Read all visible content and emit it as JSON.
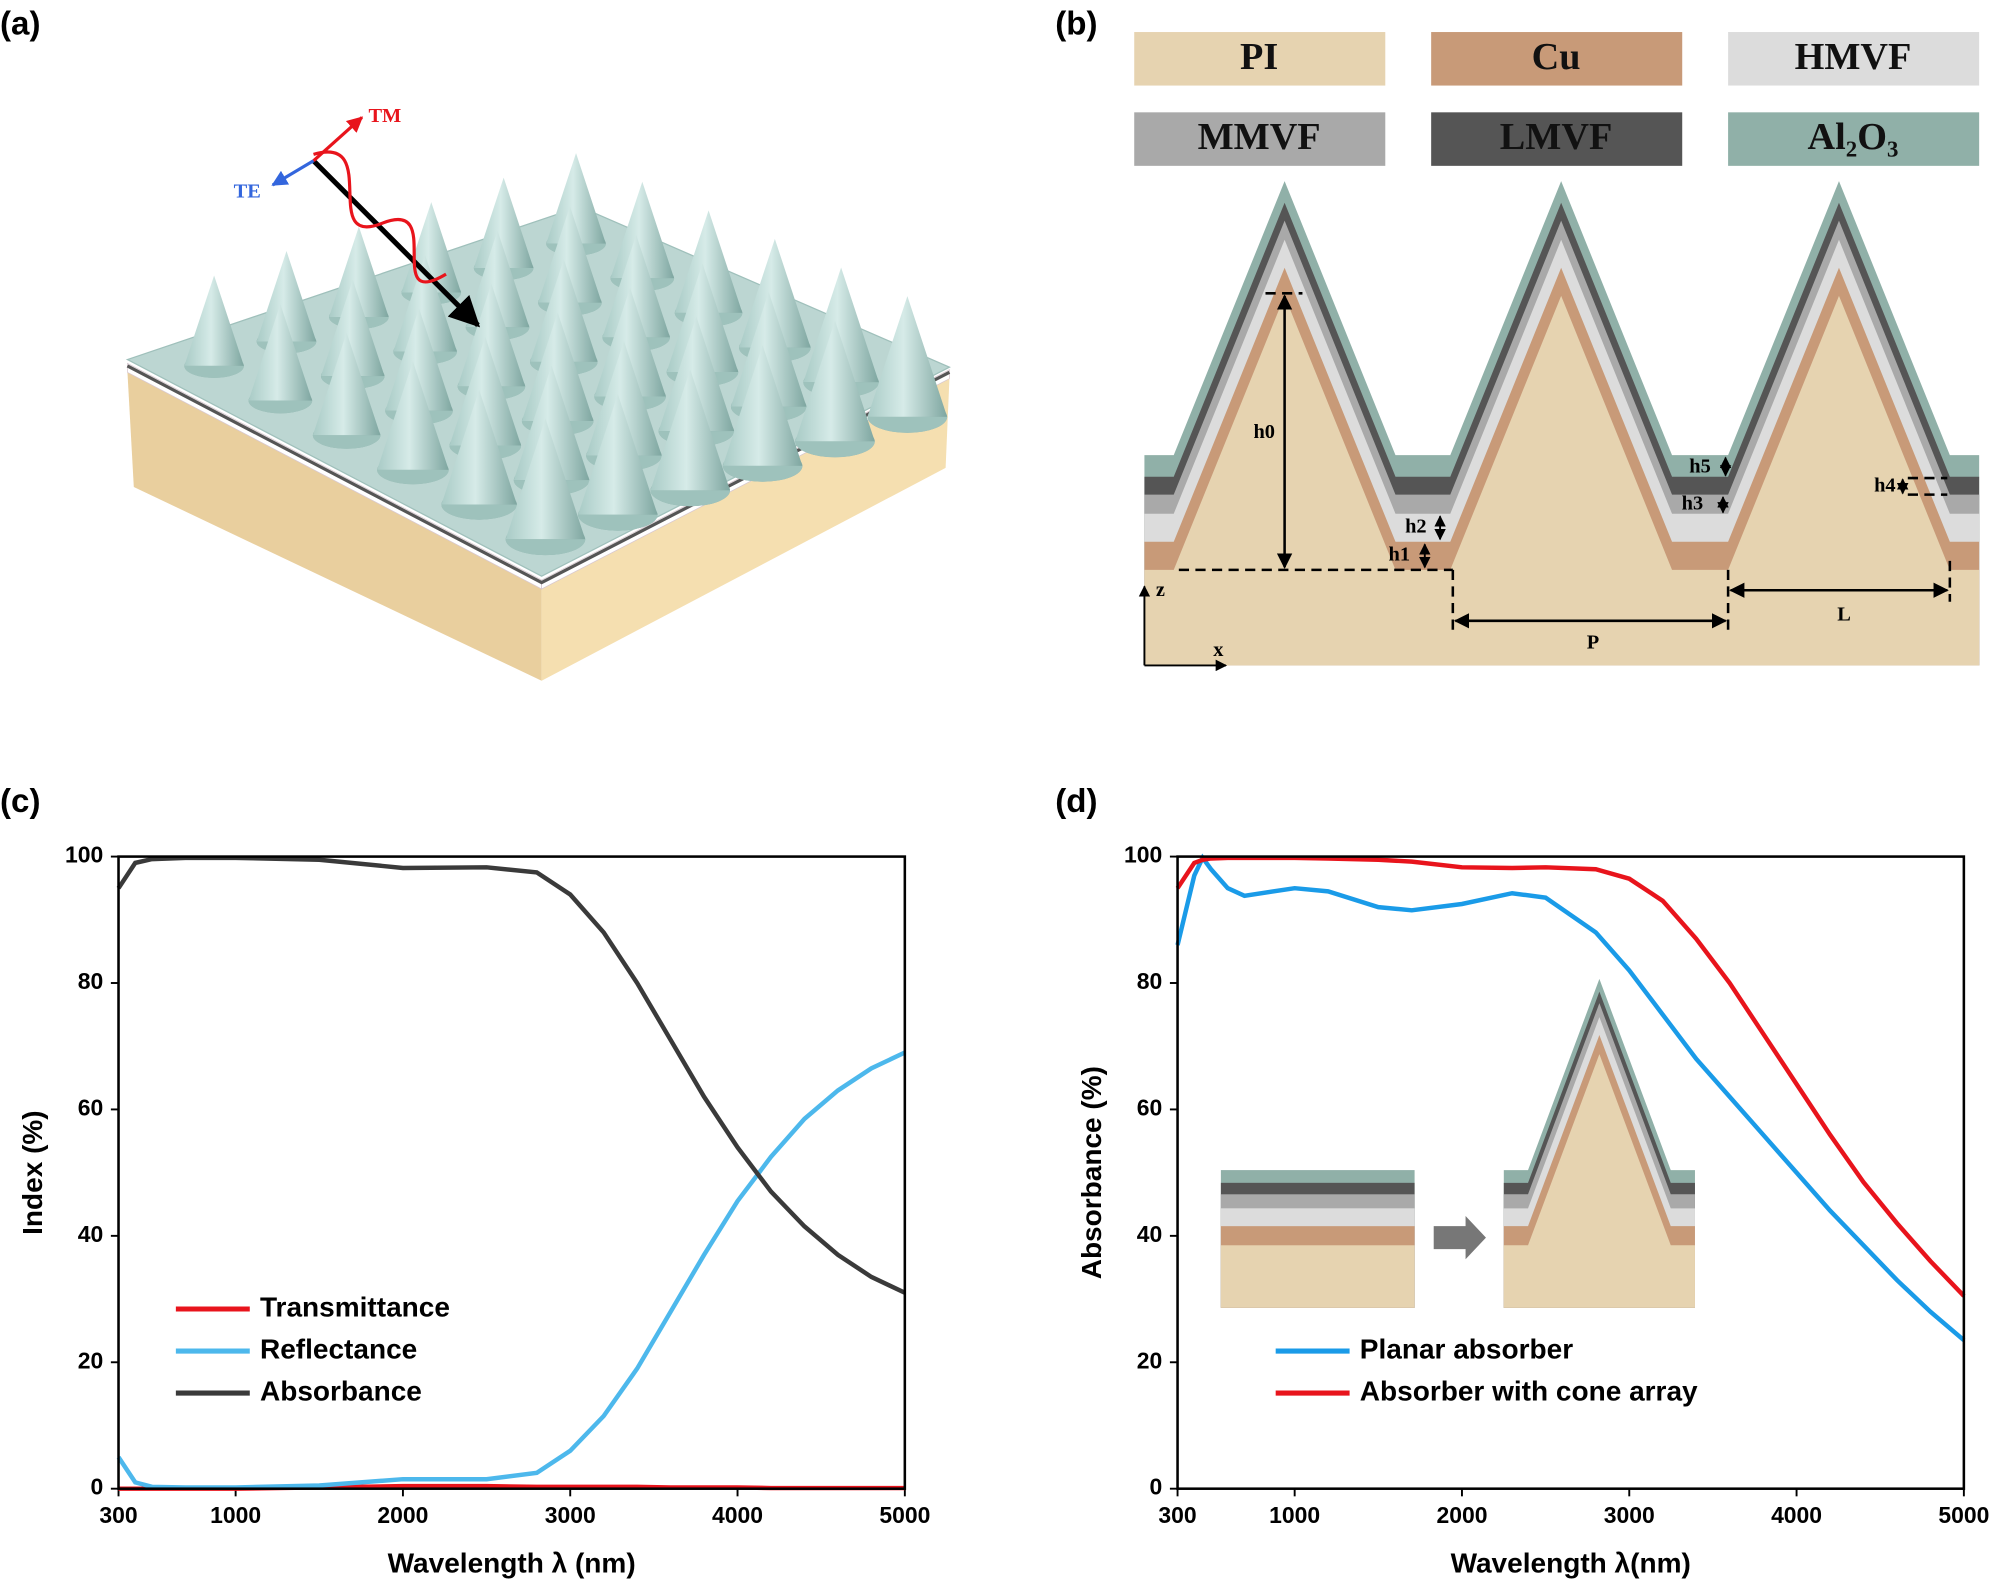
{
  "panel_labels": [
    "(a)",
    "(b)",
    "(c)",
    "(d)"
  ],
  "panel_a": {
    "labels": [
      "TM",
      "TE"
    ]
  },
  "panel_b": {
    "materials": [
      {
        "name": "PI",
        "color": "#e6d3b0"
      },
      {
        "name": "Cu",
        "color": "#c89a78"
      },
      {
        "name": "HMVF",
        "color": "#dcdcdc"
      },
      {
        "name": "MMVF",
        "color": "#a9a9a9"
      },
      {
        "name": "LMVF",
        "color": "#555555"
      },
      {
        "name": "Al₂O₃",
        "color": "#90b0a8"
      }
    ],
    "dimensions": [
      "h0",
      "h1",
      "h2",
      "h3",
      "h4",
      "h5",
      "P",
      "L"
    ],
    "axes": [
      "z",
      "x"
    ]
  },
  "chart_data": [
    {
      "type": "line",
      "xlabel": "Wavelength λ (nm)",
      "ylabel": "Index (%)",
      "x": [
        300,
        400,
        500,
        700,
        1000,
        1500,
        2000,
        2500,
        2800,
        3000,
        3200,
        3400,
        3600,
        3800,
        4000,
        4200,
        4400,
        4600,
        4800,
        5000
      ],
      "xlim": [
        300,
        5000
      ],
      "xticks": [
        300,
        1000,
        2000,
        3000,
        4000,
        5000
      ],
      "ylim": [
        0,
        100
      ],
      "yticks": [
        0,
        20,
        40,
        60,
        80,
        100
      ],
      "legend": "lower left",
      "series": [
        {
          "name": "Transmittance",
          "color": "#e8141c",
          "values": [
            0,
            0,
            0,
            0,
            0,
            0.2,
            0.4,
            0.4,
            0.3,
            0.3,
            0.3,
            0.3,
            0.2,
            0.2,
            0.2,
            0.1,
            0.1,
            0.1,
            0.1,
            0.1
          ]
        },
        {
          "name": "Reflectance",
          "color": "#4db8ec",
          "values": [
            5,
            1,
            0.3,
            0.2,
            0.2,
            0.5,
            1.5,
            1.5,
            2.5,
            6,
            11.5,
            19,
            28,
            37,
            45.5,
            52.5,
            58.5,
            63,
            66.5,
            69
          ]
        },
        {
          "name": "Absorbance",
          "color": "#3a3a3a",
          "values": [
            95,
            99,
            99.6,
            99.8,
            99.8,
            99.5,
            98.2,
            98.3,
            97.5,
            94,
            88,
            80,
            71,
            62,
            54,
            47,
            41.5,
            37,
            33.5,
            31
          ]
        }
      ]
    },
    {
      "type": "line",
      "xlabel": "Wavelength λ(nm)",
      "ylabel": "Absorbance (%)",
      "x": [
        300,
        400,
        450,
        500,
        600,
        700,
        1000,
        1200,
        1500,
        1700,
        2000,
        2300,
        2500,
        2800,
        3000,
        3200,
        3400,
        3600,
        3800,
        4000,
        4200,
        4400,
        4600,
        4800,
        5000
      ],
      "xlim": [
        300,
        5000
      ],
      "xticks": [
        300,
        1000,
        2000,
        3000,
        4000,
        5000
      ],
      "ylim": [
        0,
        100
      ],
      "yticks": [
        0,
        20,
        40,
        60,
        80,
        100
      ],
      "legend": "lower center",
      "series": [
        {
          "name": "Planar absorber",
          "color": "#1a9be8",
          "values": [
            86,
            97,
            99.8,
            98,
            95,
            93.8,
            95,
            94.5,
            92,
            91.5,
            92.5,
            94.2,
            93.5,
            88,
            82,
            75,
            68,
            62,
            56,
            50,
            44,
            38.5,
            33,
            28,
            23.5
          ]
        },
        {
          "name": "Absorber with cone array",
          "color": "#e8141c",
          "values": [
            95,
            99,
            99.5,
            99.7,
            99.8,
            99.8,
            99.8,
            99.7,
            99.5,
            99.2,
            98.3,
            98.2,
            98.3,
            98,
            96.5,
            93,
            87,
            80,
            72,
            64,
            56,
            48.5,
            42,
            36,
            30.5
          ]
        }
      ]
    }
  ]
}
